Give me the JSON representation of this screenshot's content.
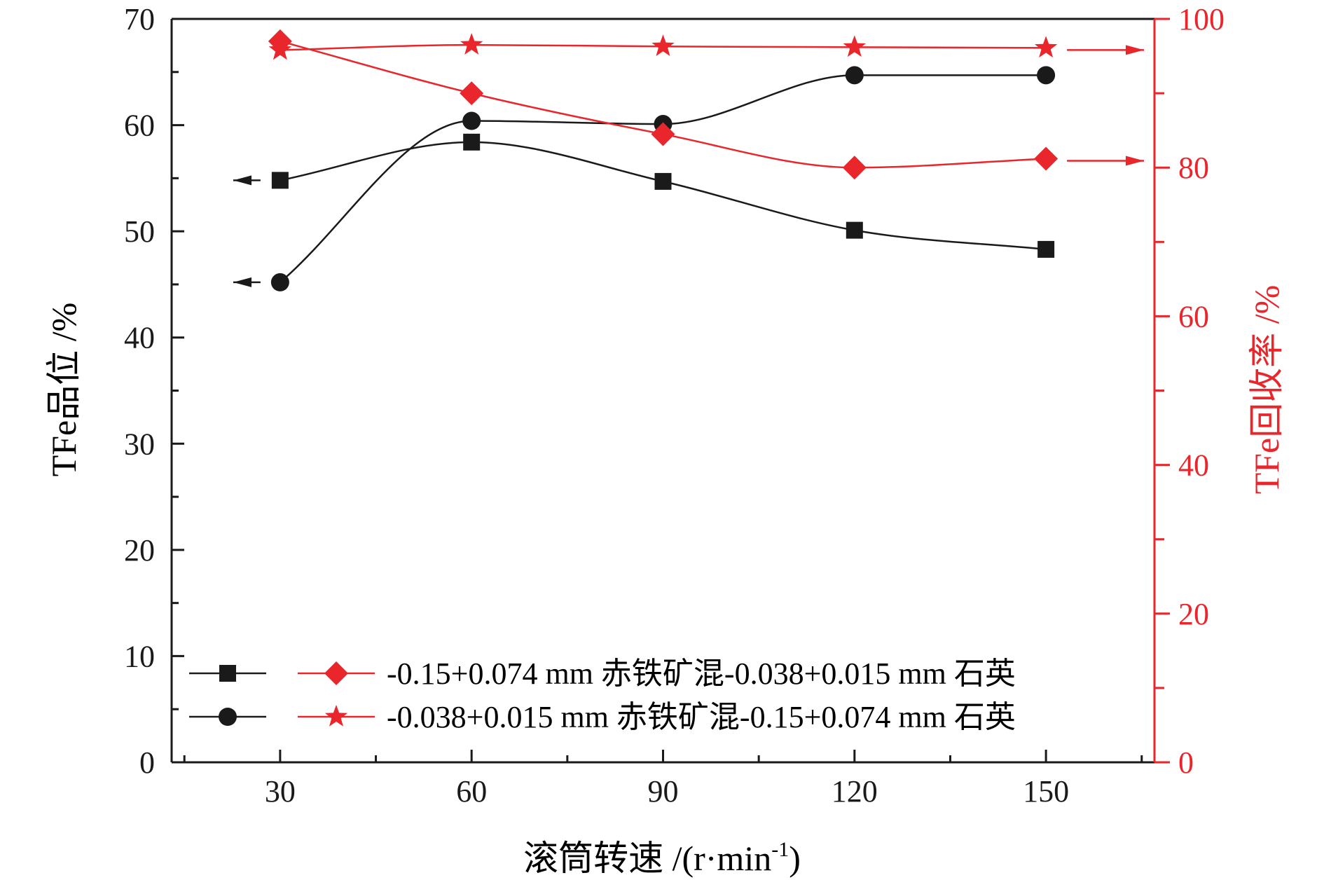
{
  "chart_data": {
    "type": "line",
    "x": [
      30,
      60,
      90,
      120,
      150
    ],
    "xlabel_main": "滚筒转速 /(r·min",
    "xlabel_sup": "-1",
    "xlabel_close": ")",
    "ylabel_left": "TFe品位 /%",
    "ylabel_right": "TFe回收率 /%",
    "xlim": [
      13,
      167
    ],
    "xticks": [
      30,
      60,
      90,
      120,
      150
    ],
    "xtick_labels": [
      "30",
      "60",
      "90",
      "120",
      "150"
    ],
    "ylim_left": [
      0,
      70
    ],
    "yticks_left": [
      0,
      10,
      20,
      30,
      40,
      50,
      60,
      70
    ],
    "ytick_labels_left": [
      "0",
      "10",
      "20",
      "30",
      "40",
      "50",
      "60",
      "70"
    ],
    "ylim_right": [
      0,
      100
    ],
    "yticks_right": [
      0,
      20,
      40,
      60,
      80,
      100
    ],
    "ytick_labels_right": [
      "0",
      "20",
      "40",
      "60",
      "80",
      "100"
    ],
    "grid": false,
    "legend_position": "bottom-left",
    "legend": [
      {
        "label": "-0.15+0.074 mm 赤铁矿混-0.038+0.015 mm 石英",
        "left_marker": "square",
        "right_marker": "diamond"
      },
      {
        "label": "-0.038+0.015 mm 赤铁矿混-0.15+0.074 mm 石英",
        "left_marker": "circle",
        "right_marker": "star"
      }
    ],
    "series": [
      {
        "axis": "left",
        "marker": "square",
        "color": "#1a1a1a",
        "values": [
          54.8,
          58.4,
          54.7,
          50.1,
          48.3
        ]
      },
      {
        "axis": "left",
        "marker": "circle",
        "color": "#1a1a1a",
        "values": [
          45.2,
          60.4,
          60.1,
          64.7,
          64.7
        ]
      },
      {
        "axis": "right",
        "marker": "diamond",
        "color": "#e8262b",
        "values": [
          97.0,
          90.0,
          84.5,
          80.0,
          81.2
        ]
      },
      {
        "axis": "right",
        "marker": "star",
        "color": "#e8262b",
        "values": [
          95.8,
          96.5,
          96.3,
          96.2,
          96.1
        ]
      }
    ],
    "colors": {
      "left_axis": "#1a1a1a",
      "right_axis": "#e8262b"
    }
  }
}
